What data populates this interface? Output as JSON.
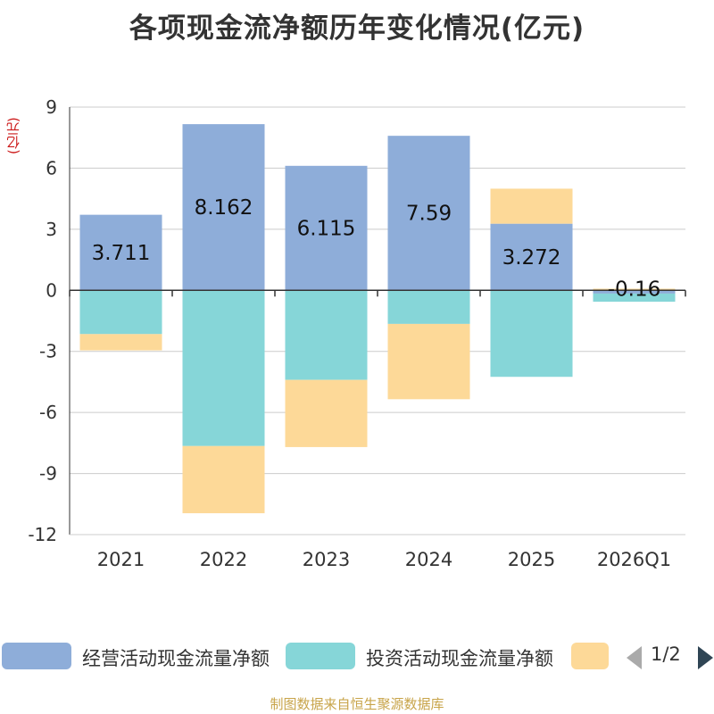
{
  "chart_data": {
    "type": "bar",
    "stacked": true,
    "title": "各项现金流净额历年变化情况(亿元)",
    "ylabel": "(亿元)",
    "ylim": [
      -12,
      9
    ],
    "yticks": [
      9,
      6,
      3,
      0,
      -3,
      -6,
      -9,
      -12
    ],
    "grid": true,
    "categories": [
      "2021",
      "2022",
      "2023",
      "2024",
      "2025",
      "2026Q1"
    ],
    "series": [
      {
        "name": "经营活动现金流量净额",
        "color": "#8eadd9",
        "values": [
          3.711,
          8.162,
          6.115,
          7.59,
          3.272,
          -0.16
        ],
        "labels": [
          "3.711",
          "8.162",
          "6.115",
          "7.59",
          "3.272",
          "-0.16"
        ]
      },
      {
        "name": "投资活动现金流量净额",
        "color": "#86d6d8",
        "values": [
          -2.15,
          -7.65,
          -4.4,
          -1.65,
          -4.25,
          -0.4
        ]
      },
      {
        "name": "",
        "color": "#fdd998",
        "values": [
          -0.8,
          -3.3,
          -3.3,
          -3.7,
          1.72,
          0.08
        ]
      }
    ],
    "legend_position": "bottom",
    "pager": "1/2"
  },
  "source": "制图数据来自恒生聚源数据库"
}
